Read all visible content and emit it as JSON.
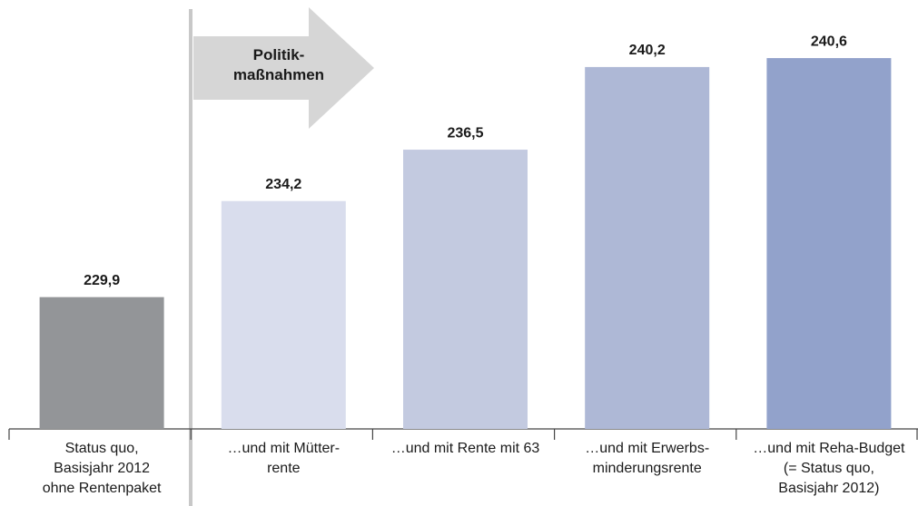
{
  "chart_data": {
    "type": "bar",
    "categories": [
      "Status quo,\nBasisjahr 2012\nohne Rentenpaket",
      "…und mit Mütter-\nrente",
      "…und mit Rente mit 63",
      "…und mit Erwerbs-\nminderungsrente",
      "…und mit Reha-Budget\n(= Status quo,\nBasisjahr 2012)"
    ],
    "values": [
      229.9,
      234.2,
      236.5,
      240.2,
      240.6
    ],
    "value_labels": [
      "229,9",
      "234,2",
      "236,5",
      "240,2",
      "240,6"
    ],
    "colors": [
      "#939598",
      "#d9dded",
      "#c3cae0",
      "#aeb8d6",
      "#92a2cb"
    ],
    "ylim": [
      224,
      243.2
    ],
    "annotation": "Politik-\nmaßnahmen"
  }
}
